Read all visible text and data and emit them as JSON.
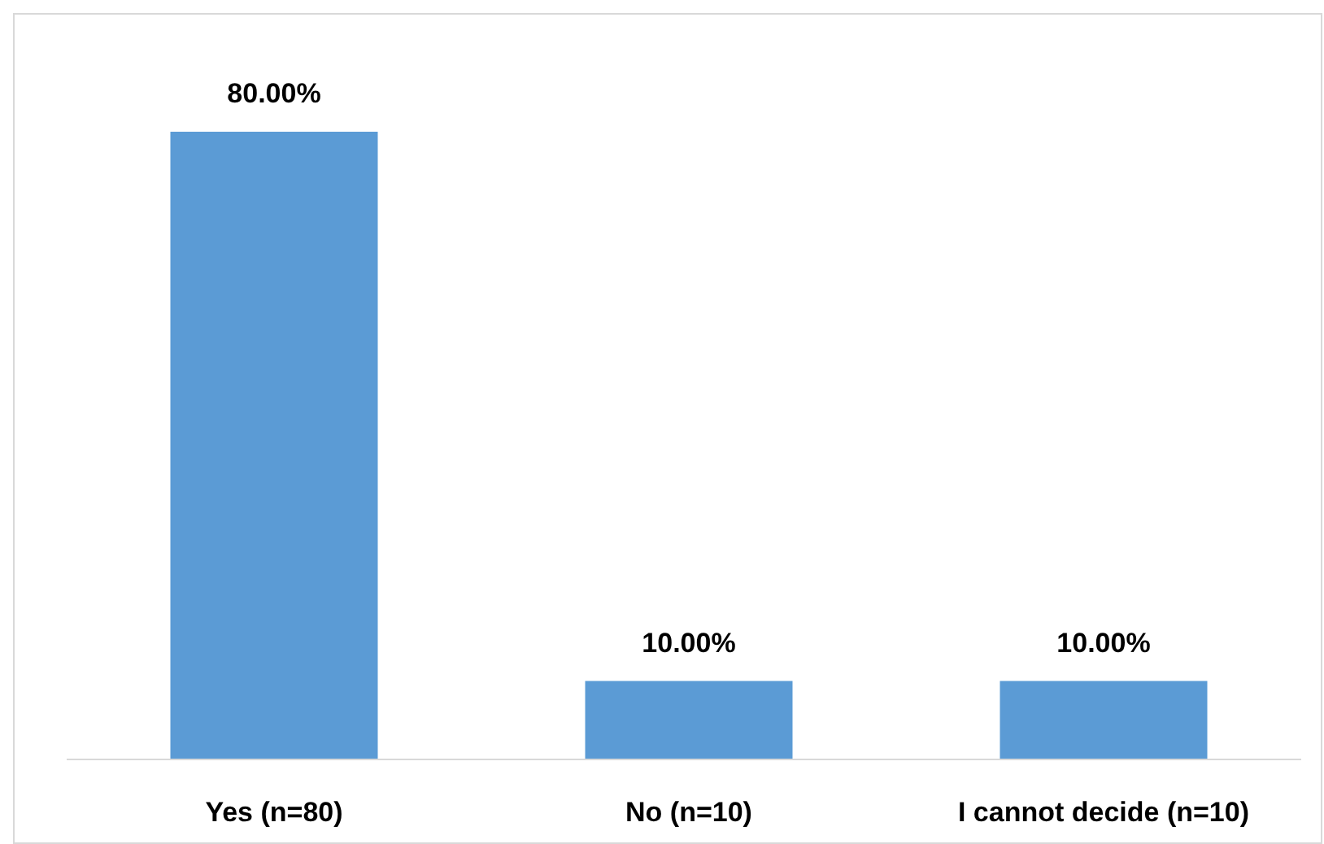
{
  "chart_data": {
    "type": "bar",
    "categories": [
      "Yes (n=80)",
      "No (n=10)",
      "I cannot decide (n=10)"
    ],
    "values": [
      80,
      10,
      10
    ],
    "value_labels": [
      "80.00%",
      "10.00%",
      "10.00%"
    ],
    "color": "#5b9bd5"
  }
}
